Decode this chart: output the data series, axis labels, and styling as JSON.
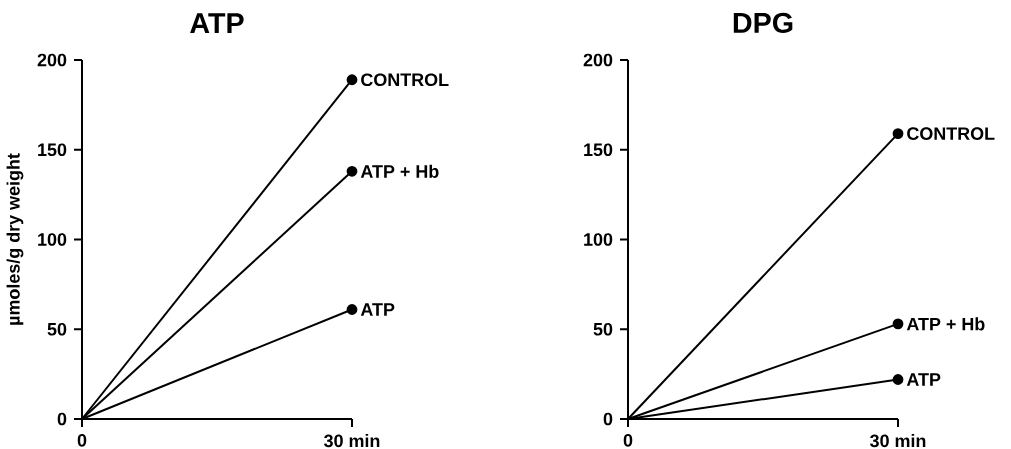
{
  "chart_data": [
    {
      "type": "line",
      "title": "ATP",
      "ylabel": "µmoles/g dry weight",
      "categories": [
        "0",
        "30 min"
      ],
      "ylim": [
        0,
        200
      ],
      "yticks": [
        0,
        50,
        100,
        150,
        200
      ],
      "marker": "circle",
      "series": [
        {
          "name": "CONTROL",
          "color": "#000000",
          "values": [
            0,
            189
          ]
        },
        {
          "name": "ATP + Hb",
          "color": "#000000",
          "values": [
            0,
            138
          ]
        },
        {
          "name": "ATP",
          "color": "#000000",
          "values": [
            0,
            61
          ]
        }
      ]
    },
    {
      "type": "line",
      "title": "DPG",
      "categories": [
        "0",
        "30 min"
      ],
      "ylim": [
        0,
        200
      ],
      "yticks": [
        0,
        50,
        100,
        150,
        200
      ],
      "marker": "circle",
      "series": [
        {
          "name": "CONTROL",
          "color": "#000000",
          "values": [
            0,
            159
          ]
        },
        {
          "name": "ATP + Hb",
          "color": "#000000",
          "values": [
            0,
            53
          ]
        },
        {
          "name": "ATP",
          "color": "#000000",
          "values": [
            0,
            22
          ]
        }
      ]
    }
  ]
}
